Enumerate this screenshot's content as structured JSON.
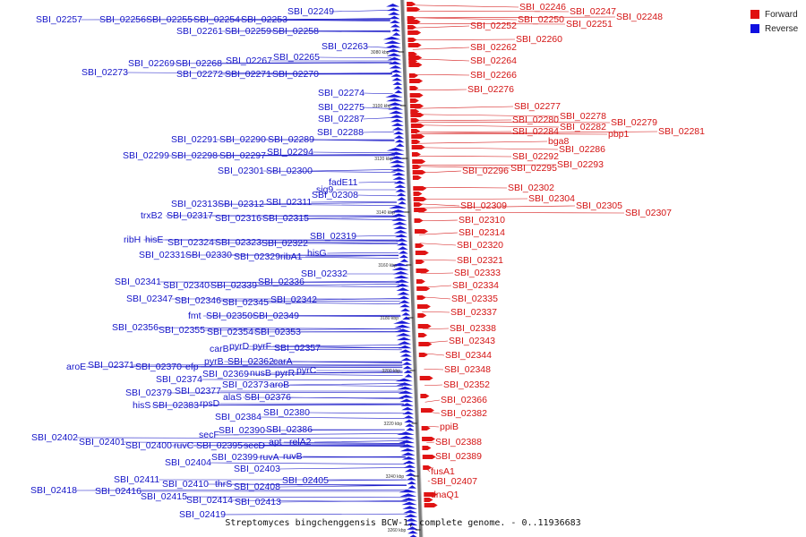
{
  "legend": {
    "forward": "Forward",
    "reverse": "Reverse",
    "forward_color": "#e01010",
    "reverse_color": "#1010e0"
  },
  "caption": "Streptomyces bingchenggensis BCW-1, complete genome. - 0..11936683",
  "ticks": [
    "3080 kbp",
    "3100 kbp",
    "3120 kbp",
    "3140 kbp",
    "3160 kbp",
    "3180 kbp",
    "3200 kbp",
    "3220 kbp",
    "3240 kbp",
    "3260 kbp"
  ],
  "reverse_labels": [
    "SBI_02249",
    "SBI_02257",
    "SBI_02256",
    "SBI_02255",
    "SBI_02254",
    "SBI_02253",
    "SBI_02261",
    "SBI_02259",
    "SBI_02258",
    "SBI_02263",
    "SBI_02269",
    "SBI_02268",
    "SBI_02267",
    "SBI_02265",
    "SBI_02273",
    "SBI_02272",
    "SBI_02271",
    "SBI_02270",
    "SBI_02274",
    "SBI_02275",
    "SBI_02287",
    "SBI_02288",
    "SBI_02291",
    "SBI_02290",
    "SBI_02289",
    "SBI_02299",
    "SBI_02298",
    "SBI_02297",
    "SBI_02294",
    "SBI_02301",
    "SBI_02300",
    "fadE11",
    "sig9",
    "SBI_02308",
    "SBI_02313",
    "SBI_02312",
    "SBI_02311",
    "trxB2",
    "SBI_02317",
    "SBI_02316",
    "SBI_02315",
    "SBI_02319",
    "ribH",
    "hisE",
    "SBI_02324",
    "SBI_02323",
    "SBI_02322",
    "SBI_02331",
    "SBI_02330",
    "SBI_02329",
    "ribA1",
    "hisG",
    "SBI_02332",
    "SBI_02341",
    "SBI_02340",
    "SBI_02339",
    "SBI_02336",
    "SBI_02347",
    "SBI_02346",
    "SBI_02345",
    "SBI_02342",
    "fmt",
    "SBI_02350",
    "SBI_02349",
    "SBI_02356",
    "SBI_02355",
    "SBI_02354",
    "SBI_02353",
    "carB",
    "pyrD",
    "pyrF",
    "SBI_02357",
    "pyrB",
    "SBI_02362",
    "carA",
    "aroE",
    "SBI_02371",
    "SBI_02370",
    "efp",
    "SBI_02369",
    "nusB",
    "pyrR",
    "pyrC",
    "SBI_02374",
    "SBI_02373",
    "aroB",
    "SBI_02379",
    "SBI_02377",
    "alaS",
    "SBI_02376",
    "hisS",
    "SBI_02383",
    "rpsD",
    "SBI_02380",
    "SBI_02384",
    "secF",
    "SBI_02390",
    "SBI_02386",
    "SBI_02402",
    "SBI_02401",
    "SBI_02400",
    "ruvC",
    "SBI_02395",
    "secD",
    "apt",
    "relA2",
    "SBI_02399",
    "ruvA",
    "ruvB",
    "SBI_02404",
    "SBI_02403",
    "SBI_02405",
    "SBI_02411",
    "SBI_02410",
    "thrS",
    "SBI_02408",
    "SBI_02418",
    "SBI_02416",
    "SBI_02415",
    "SBI_02414",
    "SBI_02413",
    "SBI_02419"
  ],
  "forward_labels": [
    "SBI_02246",
    "SBI_02247",
    "SBI_02248",
    "SBI_02252",
    "SBI_02250",
    "SBI_02251",
    "SBI_02260",
    "SBI_02262",
    "SBI_02264",
    "SBI_02266",
    "SBI_02276",
    "SBI_02277",
    "SBI_02278",
    "SBI_02279",
    "SBI_02280",
    "SBI_02281",
    "SBI_02282",
    "pbp1",
    "SBI_02284",
    "bga8",
    "SBI_02286",
    "SBI_02292",
    "SBI_02293",
    "SBI_02296",
    "SBI_02295",
    "SBI_02302",
    "SBI_02304",
    "SBI_02305",
    "SBI_02309",
    "SBI_02307",
    "SBI_02310",
    "SBI_02314",
    "SBI_02320",
    "SBI_02321",
    "SBI_02333",
    "SBI_02334",
    "SBI_02335",
    "SBI_02337",
    "SBI_02338",
    "SBI_02343",
    "SBI_02344",
    "SBI_02348",
    "SBI_02352",
    "SBI_02366",
    "SBI_02382",
    "ppiB",
    "SBI_02388",
    "SBI_02389",
    "fusA1",
    "SBI_02407",
    "dnaQ1"
  ]
}
